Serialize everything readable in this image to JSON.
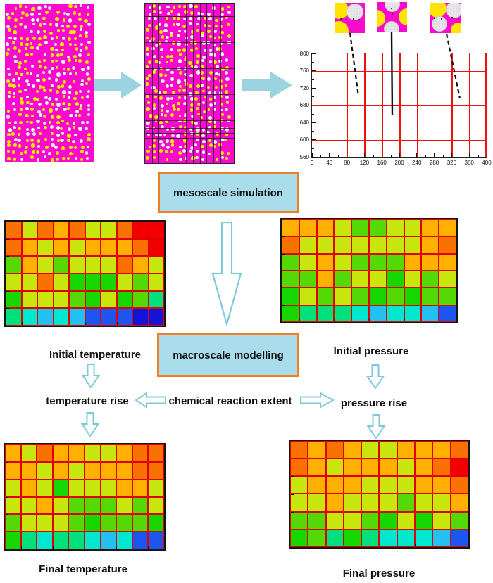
{
  "diagram": {
    "boxes": {
      "mesoscale": "mesoscale simulation",
      "macroscale": "macroscale modelling"
    },
    "labels": {
      "temperature_rise": "temperature rise",
      "chemical_reaction": "chemical reaction extent",
      "pressure_rise": "pressure rise"
    }
  },
  "colors": {
    "magenta_matrix": "#fa0acc",
    "particle_yellow": "#ffe400",
    "particle_white": "#e8f0f5",
    "solid_arrow_fill": "#9cd3e1",
    "hollow_arrow_outline": "#7fc8dc",
    "box_fill": "#aaddeb",
    "box_border": "#f07e22",
    "chart_grid_red": "#ee1111",
    "heatmap_grid_red": "#e00000"
  },
  "icons": {
    "flow-arrow-right": "solid cyan right block arrow",
    "flow-arrow-down-hollow": "outlined cyan down block arrow",
    "flow-arrow-left-hollow": "outlined cyan left block arrow",
    "cell-snapshot": "mesoscale cell microstructure snapshot"
  },
  "heatmap_palette": {
    "R": "#f20000",
    "O": "#f97100",
    "A": "#ffb000",
    "Y": "#c6e60d",
    "G": "#55d906",
    "g": "#16d800",
    "S": "#00e07c",
    "T": "#00e7cf",
    "C": "#23c0f2",
    "B": "#1d55f0",
    "D": "#1414d8"
  },
  "chart_data": [
    {
      "type": "heatmap",
      "name": "mesoscale_grid_plot",
      "title": "",
      "x_ticks": [
        "0",
        "40",
        "80",
        "120",
        "160",
        "200",
        "240",
        "280",
        "320",
        "360",
        "400"
      ],
      "y_ticks": [
        "800",
        "760",
        "720",
        "680",
        "640",
        "600",
        "560"
      ],
      "xlim": [
        0,
        400
      ],
      "ylim": [
        560,
        800
      ],
      "grid": "red major grid, vertical every 40 x-units, horizontal at 760/680/600",
      "red_h_gridlines_at": [
        760,
        680,
        600
      ],
      "red_v_gridline_step": 40,
      "legend": "none"
    },
    {
      "type": "heatmap",
      "name": "initial_temperature",
      "label": "Initial temperature",
      "rows": 6,
      "cols": 10,
      "cells": [
        [
          "O",
          "Y",
          "O",
          "A",
          "O",
          "Y",
          "Y",
          "O",
          "R",
          "R"
        ],
        [
          "O",
          "A",
          "Y",
          "A",
          "Y",
          "A",
          "A",
          "A",
          "O",
          "R"
        ],
        [
          "G",
          "A",
          "Y",
          "G",
          "Y",
          "Y",
          "Y",
          "O",
          "A",
          "Y"
        ],
        [
          "Y",
          "Y",
          "O",
          "Y",
          "g",
          "g",
          "g",
          "Y",
          "G",
          "Y"
        ],
        [
          "g",
          "Y",
          "Y",
          "Y",
          "G",
          "g",
          "Y",
          "g",
          "G",
          "S"
        ],
        [
          "S",
          "T",
          "C",
          "T",
          "C",
          "B",
          "B",
          "B",
          "D",
          "D"
        ]
      ]
    },
    {
      "type": "heatmap",
      "name": "initial_pressure",
      "label": "Initial pressure",
      "rows": 6,
      "cols": 10,
      "cells": [
        [
          "A",
          "A",
          "A",
          "Y",
          "G",
          "G",
          "Y",
          "Y",
          "A",
          "A"
        ],
        [
          "O",
          "Y",
          "Y",
          "Y",
          "Y",
          "Y",
          "Y",
          "Y",
          "A",
          "O"
        ],
        [
          "G",
          "Y",
          "A",
          "Y",
          "G",
          "G",
          "G",
          "A",
          "A",
          "A"
        ],
        [
          "G",
          "G",
          "A",
          "G",
          "Y",
          "Y",
          "g",
          "Y",
          "G",
          "Y"
        ],
        [
          "g",
          "Y",
          "G",
          "Y",
          "G",
          "g",
          "G",
          "g",
          "G",
          "G"
        ],
        [
          "g",
          "S",
          "S",
          "S",
          "T",
          "C",
          "T",
          "T",
          "C",
          "B"
        ]
      ]
    },
    {
      "type": "heatmap",
      "name": "final_temperature",
      "label": "Final temperature",
      "rows": 6,
      "cols": 10,
      "cells": [
        [
          "A",
          "Y",
          "O",
          "A",
          "A",
          "Y",
          "Y",
          "A",
          "O",
          "O"
        ],
        [
          "A",
          "A",
          "Y",
          "A",
          "Y",
          "A",
          "A",
          "A",
          "O",
          "O"
        ],
        [
          "Y",
          "A",
          "Y",
          "g",
          "Y",
          "Y",
          "Y",
          "A",
          "A",
          "Y"
        ],
        [
          "Y",
          "Y",
          "A",
          "Y",
          "G",
          "G",
          "G",
          "Y",
          "G",
          "Y"
        ],
        [
          "G",
          "Y",
          "Y",
          "Y",
          "G",
          "g",
          "G",
          "G",
          "G",
          "g"
        ],
        [
          "g",
          "S",
          "T",
          "S",
          "S",
          "T",
          "C",
          "T",
          "B",
          "B"
        ]
      ]
    },
    {
      "type": "heatmap",
      "name": "final_pressure",
      "label": "Final pressure",
      "rows": 6,
      "cols": 10,
      "cells": [
        [
          "O",
          "A",
          "O",
          "A",
          "Y",
          "Y",
          "A",
          "A",
          "A",
          "O"
        ],
        [
          "O",
          "A",
          "Y",
          "A",
          "A",
          "A",
          "Y",
          "A",
          "O",
          "R"
        ],
        [
          "Y",
          "A",
          "A",
          "A",
          "Y",
          "Y",
          "Y",
          "A",
          "A",
          "O"
        ],
        [
          "Y",
          "Y",
          "A",
          "Y",
          "Y",
          "Y",
          "G",
          "Y",
          "Y",
          "A"
        ],
        [
          "G",
          "G",
          "Y",
          "Y",
          "G",
          "g",
          "Y",
          "g",
          "Y",
          "G"
        ],
        [
          "g",
          "G",
          "S",
          "g",
          "S",
          "T",
          "T",
          "T",
          "C",
          "B"
        ]
      ]
    }
  ]
}
